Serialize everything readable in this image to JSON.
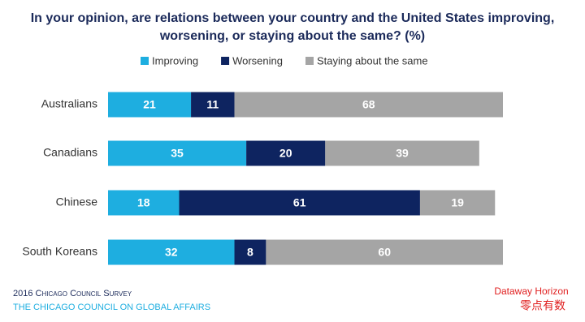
{
  "chart_data": {
    "type": "stacked-bar-horizontal",
    "title": "In your opinion, are relations between your country and the United States improving, worsening, or staying about the same? (%)",
    "categories": [
      "Australians",
      "Canadians",
      "Chinese",
      "South Koreans"
    ],
    "series": [
      {
        "name": "Improving",
        "color": "#1eaee0",
        "values": [
          21,
          35,
          18,
          32
        ]
      },
      {
        "name": "Worsening",
        "color": "#0e2460",
        "values": [
          11,
          20,
          61,
          8
        ]
      },
      {
        "name": "Staying about the same",
        "color": "#a5a5a5",
        "values": [
          68,
          39,
          19,
          60
        ]
      }
    ],
    "legend": "top",
    "source": "2016 Chicago Council Survey",
    "publisher": "THE CHICAGO COUNCIL ON GLOBAL AFFAIRS",
    "watermark": [
      "Dataway Horizon",
      "零点有数"
    ]
  }
}
